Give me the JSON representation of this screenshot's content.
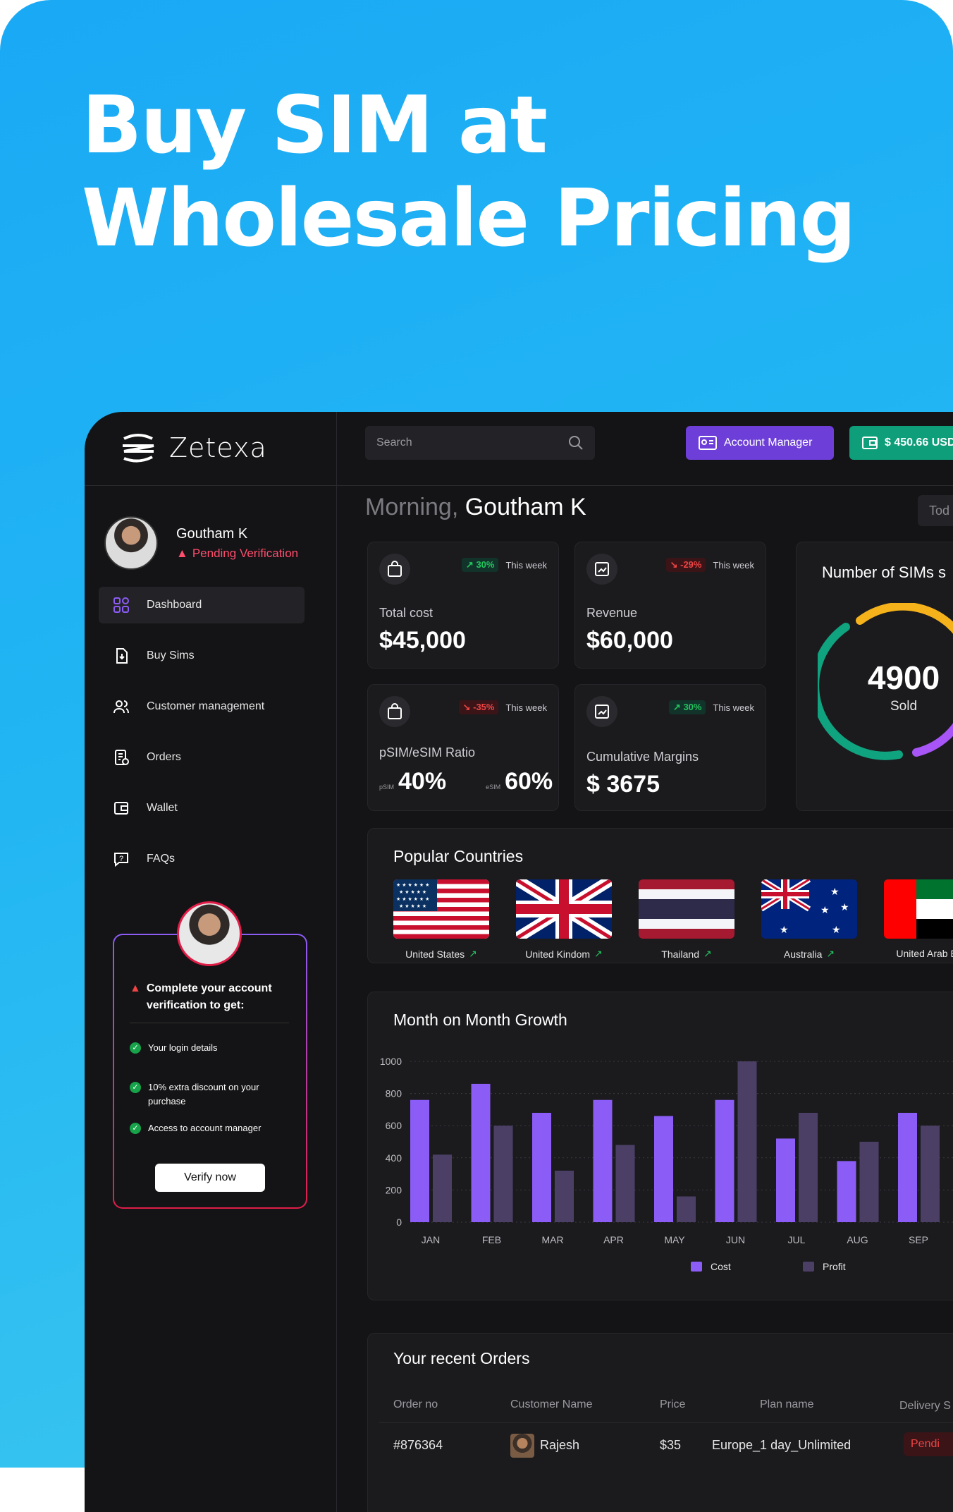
{
  "headline": [
    "Buy SIM at",
    "Wholesale Pricing"
  ],
  "app": {
    "name": "Zetexa"
  },
  "user": {
    "name": "Goutham K",
    "status": "Pending Verification"
  },
  "nav": [
    {
      "label": "Dashboard",
      "icon": "dashboard-icon"
    },
    {
      "label": "Buy Sims",
      "icon": "sim-download-icon"
    },
    {
      "label": "Customer management",
      "icon": "users-icon"
    },
    {
      "label": "Orders",
      "icon": "orders-icon"
    },
    {
      "label": "Wallet",
      "icon": "wallet-icon"
    },
    {
      "label": "FAQs",
      "icon": "faq-icon"
    }
  ],
  "verify_card": {
    "title": "Complete your account verification to get:",
    "items": [
      "Your login details",
      "10% extra discount on your purchase",
      "Access to account manager"
    ],
    "button": "Verify now"
  },
  "header": {
    "search_placeholder": "Search",
    "account_manager": "Account Manager",
    "wallet_balance": "$ 450.66 USD",
    "greeting_prefix": "Morning,",
    "greeting_name": "Goutham K",
    "date_filter": "Tod"
  },
  "stats": {
    "total_cost": {
      "label": "Total cost",
      "value": "$45,000",
      "trend": "30%",
      "period": "This week",
      "dir": "up"
    },
    "revenue": {
      "label": "Revenue",
      "value": "$60,000",
      "trend": "-29%",
      "period": "This week",
      "dir": "down"
    },
    "ratio": {
      "label": "pSIM/eSIM Ratio",
      "psim_label": "pSIM",
      "psim_value": "40%",
      "esim_label": "eSIM",
      "esim_value": "60%",
      "trend": "-35%",
      "period": "This week",
      "dir": "down"
    },
    "margins": {
      "label": "Cumulative Margins",
      "value": "$ 3675",
      "trend": "30%",
      "period": "This week",
      "dir": "up"
    }
  },
  "sims_sold": {
    "title": "Number of SIMs s",
    "value": "4900",
    "label": "Sold"
  },
  "popular_countries": {
    "title": "Popular Countries",
    "countries": [
      "United States",
      "United Kindom",
      "Thailand",
      "Australia",
      "United Arab Emi"
    ]
  },
  "chart_data": {
    "type": "bar",
    "title": "Month on Month Growth",
    "categories": [
      "JAN",
      "FEB",
      "MAR",
      "APR",
      "MAY",
      "JUN",
      "JUL",
      "AUG",
      "SEP"
    ],
    "series": [
      {
        "name": "Cost",
        "color": "#8b5cf6",
        "values": [
          760,
          860,
          680,
          760,
          660,
          760,
          520,
          380,
          680
        ]
      },
      {
        "name": "Profit",
        "color": "#4c3f66",
        "values": [
          420,
          600,
          320,
          480,
          160,
          1000,
          680,
          500,
          600
        ]
      }
    ],
    "yticks": [
      0,
      200,
      400,
      600,
      800,
      1000
    ],
    "ylim": [
      0,
      1000
    ]
  },
  "orders": {
    "title": "Your recent Orders",
    "columns": [
      "Order no",
      "Customer Name",
      "Price",
      "Plan name",
      "Delivery S"
    ],
    "rows": [
      {
        "order_no": "#876364",
        "customer": "Rajesh",
        "price": "$35",
        "plan": "Europe_1 day_Unlimited",
        "status": "Pendi"
      }
    ]
  }
}
